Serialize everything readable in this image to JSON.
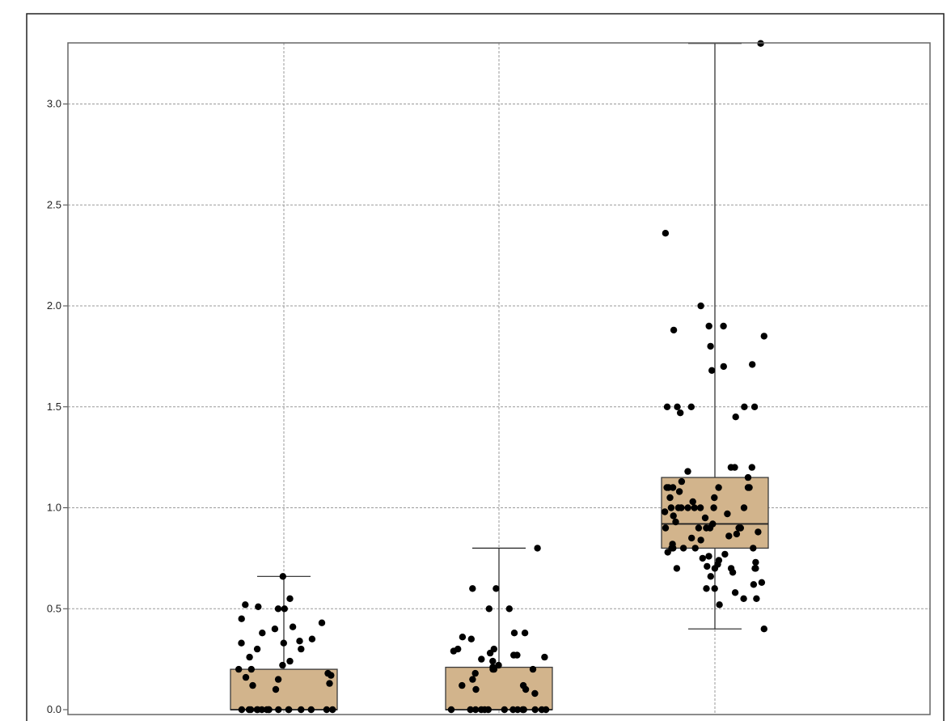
{
  "chart_data": {
    "type": "box",
    "title": "",
    "xlabel": "",
    "ylabel": "",
    "ylim": [
      0,
      3.3
    ],
    "yticks": [
      "0.0",
      "0.5",
      "1.0",
      "1.5",
      "2.0",
      "2.5",
      "3.0"
    ],
    "grid": true,
    "colors": {
      "box_fill": "#d2b48c",
      "box_stroke": "#3a3a3a",
      "point": "#000000",
      "grid": "#9a9a9a"
    },
    "categories": [
      {
        "name": "",
        "box": {
          "min": 0.0,
          "q1": 0.0,
          "median": 0.0,
          "q3": 0.2,
          "max": 0.66
        },
        "points": [
          0.66,
          0.55,
          0.52,
          0.51,
          0.5,
          0.5,
          0.45,
          0.43,
          0.41,
          0.4,
          0.38,
          0.35,
          0.34,
          0.33,
          0.33,
          0.3,
          0.3,
          0.26,
          0.24,
          0.22,
          0.2,
          0.2,
          0.18,
          0.17,
          0.16,
          0.15,
          0.13,
          0.12,
          0.1,
          0.0,
          0.0,
          0.0,
          0.0,
          0.0,
          0.0,
          0.0,
          0.0,
          0.0,
          0.0,
          0.0,
          0.0,
          0.0,
          0.0,
          0.0,
          0.0
        ]
      },
      {
        "name": "",
        "box": {
          "min": 0.0,
          "q1": 0.0,
          "median": 0.0,
          "q3": 0.21,
          "max": 0.8
        },
        "points": [
          0.8,
          0.6,
          0.6,
          0.5,
          0.5,
          0.38,
          0.38,
          0.36,
          0.35,
          0.3,
          0.3,
          0.29,
          0.28,
          0.27,
          0.27,
          0.26,
          0.25,
          0.24,
          0.22,
          0.21,
          0.2,
          0.2,
          0.2,
          0.18,
          0.15,
          0.12,
          0.12,
          0.1,
          0.1,
          0.08,
          0.0,
          0.0,
          0.0,
          0.0,
          0.0,
          0.0,
          0.0,
          0.0,
          0.0,
          0.0,
          0.0,
          0.0,
          0.0,
          0.0
        ]
      },
      {
        "name": "",
        "box": {
          "min": 0.4,
          "q1": 0.8,
          "median": 0.92,
          "q3": 1.15,
          "max": 3.3
        },
        "points": [
          3.3,
          2.36,
          2.0,
          1.9,
          1.9,
          1.88,
          1.85,
          1.8,
          1.71,
          1.7,
          1.68,
          1.5,
          1.5,
          1.5,
          1.5,
          1.5,
          1.47,
          1.45,
          1.2,
          1.2,
          1.2,
          1.18,
          1.15,
          1.13,
          1.1,
          1.1,
          1.1,
          1.1,
          1.1,
          1.1,
          1.08,
          1.05,
          1.05,
          1.03,
          1.0,
          1.0,
          1.0,
          1.0,
          1.0,
          1.0,
          1.0,
          1.0,
          0.98,
          0.97,
          0.96,
          0.95,
          0.93,
          0.92,
          0.9,
          0.9,
          0.9,
          0.9,
          0.9,
          0.9,
          0.88,
          0.87,
          0.86,
          0.85,
          0.84,
          0.82,
          0.8,
          0.8,
          0.8,
          0.8,
          0.8,
          0.78,
          0.77,
          0.76,
          0.75,
          0.74,
          0.73,
          0.72,
          0.71,
          0.7,
          0.7,
          0.7,
          0.7,
          0.7,
          0.68,
          0.66,
          0.63,
          0.62,
          0.6,
          0.6,
          0.58,
          0.55,
          0.55,
          0.52,
          0.4
        ]
      }
    ]
  }
}
